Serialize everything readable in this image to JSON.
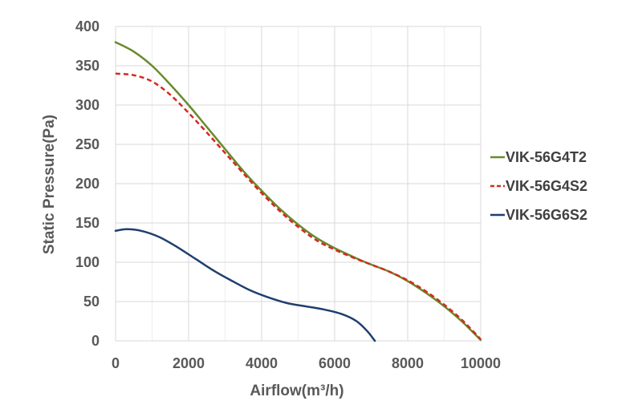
{
  "chart_data": {
    "type": "line",
    "xlabel": "Airflow(m³/h)",
    "ylabel": "Static Pressure(Pa)",
    "xlim": [
      0,
      10000
    ],
    "ylim": [
      0,
      400
    ],
    "x_ticks": [
      0,
      2000,
      4000,
      6000,
      8000,
      10000
    ],
    "y_ticks": [
      0,
      50,
      100,
      150,
      200,
      250,
      300,
      350,
      400
    ],
    "x_minor_step": 1000,
    "grid": true,
    "legend_position": "right",
    "series": [
      {
        "name": "VIK-56G4T2",
        "color": "#6a8a2c",
        "dash": "solid",
        "points": [
          [
            0,
            380
          ],
          [
            500,
            368
          ],
          [
            1000,
            350
          ],
          [
            1500,
            326
          ],
          [
            2000,
            300
          ],
          [
            2500,
            272
          ],
          [
            3000,
            244
          ],
          [
            3500,
            216
          ],
          [
            4000,
            191
          ],
          [
            4500,
            168
          ],
          [
            5000,
            148
          ],
          [
            5500,
            131
          ],
          [
            6000,
            118
          ],
          [
            6500,
            107
          ],
          [
            7000,
            97
          ],
          [
            7500,
            88
          ],
          [
            8000,
            76
          ],
          [
            8500,
            61
          ],
          [
            9000,
            44
          ],
          [
            9500,
            24
          ],
          [
            10000,
            1
          ]
        ]
      },
      {
        "name": "VIK-56G4S2",
        "color": "#d42a1f",
        "dash": "6,4",
        "points": [
          [
            0,
            340
          ],
          [
            500,
            338
          ],
          [
            1000,
            330
          ],
          [
            1500,
            313
          ],
          [
            2000,
            290
          ],
          [
            2500,
            265
          ],
          [
            3000,
            239
          ],
          [
            3500,
            213
          ],
          [
            4000,
            188
          ],
          [
            4500,
            165
          ],
          [
            5000,
            145
          ],
          [
            5500,
            128
          ],
          [
            6000,
            116
          ],
          [
            6500,
            106
          ],
          [
            7000,
            97
          ],
          [
            7500,
            88
          ],
          [
            8000,
            77
          ],
          [
            8500,
            63
          ],
          [
            9000,
            46
          ],
          [
            9500,
            26
          ],
          [
            10000,
            2
          ]
        ]
      },
      {
        "name": "VIK-56G6S2",
        "color": "#1f3f6e",
        "dash": "solid",
        "points": [
          [
            0,
            140
          ],
          [
            300,
            142
          ],
          [
            700,
            140
          ],
          [
            1200,
            132
          ],
          [
            1700,
            119
          ],
          [
            2200,
            104
          ],
          [
            2700,
            89
          ],
          [
            3200,
            76
          ],
          [
            3700,
            64
          ],
          [
            4200,
            55
          ],
          [
            4700,
            48
          ],
          [
            5200,
            44
          ],
          [
            5700,
            40
          ],
          [
            6200,
            34
          ],
          [
            6600,
            25
          ],
          [
            6900,
            12
          ],
          [
            7100,
            0
          ]
        ]
      }
    ]
  }
}
